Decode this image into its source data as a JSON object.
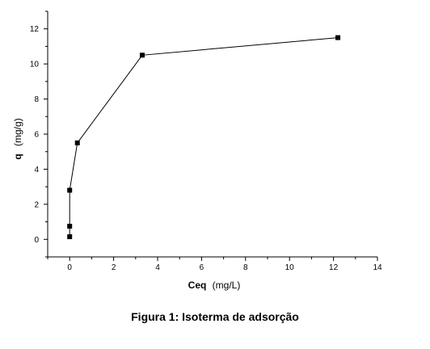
{
  "caption": "Figura 1: Isoterma de adsorção",
  "chart_data": {
    "type": "line",
    "title": "",
    "xlabel": {
      "bold": "Ceq",
      "unit": "(mg/L)"
    },
    "ylabel": {
      "bold": "q",
      "unit": "(mg/g)"
    },
    "xlim": [
      -1,
      14
    ],
    "ylim": [
      -1,
      13
    ],
    "xticks": [
      0,
      2,
      4,
      6,
      8,
      10,
      12,
      14
    ],
    "yticks": [
      0,
      2,
      4,
      6,
      8,
      10,
      12
    ],
    "grid": false,
    "marker": "square",
    "series": [
      {
        "points": [
          {
            "x": 0.0,
            "y": 0.15
          },
          {
            "x": 0.0,
            "y": 0.75
          },
          {
            "x": 0.0,
            "y": 2.8
          },
          {
            "x": 0.35,
            "y": 5.5
          },
          {
            "x": 3.3,
            "y": 10.5
          },
          {
            "x": 12.2,
            "y": 11.5
          }
        ]
      }
    ]
  }
}
